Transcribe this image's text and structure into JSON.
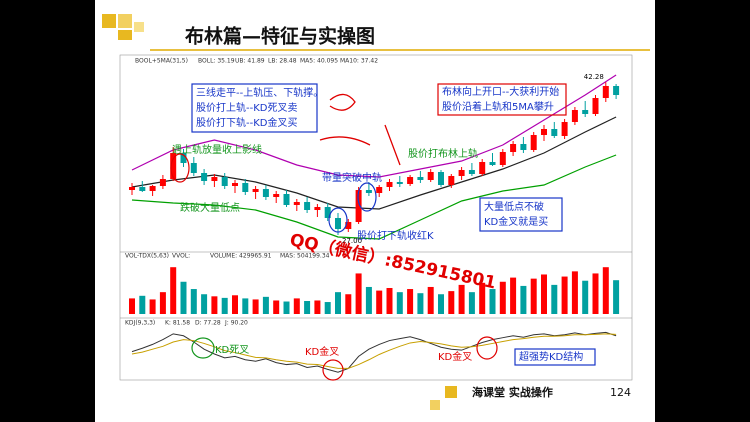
{
  "header": {
    "title": "布林篇—特征与实操图"
  },
  "chart_data": {
    "type": "candlestick",
    "toolbar": [
      "BOOL+5MA(31,5)",
      "BOLL: 35.19",
      "UB: 41.89",
      "LB: 28.48",
      "MA5: 40.095",
      "MA10: 37.42"
    ],
    "ylim": [
      26,
      43
    ],
    "high_label": 42.28,
    "low_label": {
      "value": 27,
      "label": "27.00"
    },
    "up_color": "#ff0000",
    "down_color": "#00a0a0",
    "candles": [
      [
        31.5,
        32.2,
        31.0,
        31.8
      ],
      [
        31.8,
        32.4,
        31.3,
        31.4
      ],
      [
        31.4,
        32.0,
        30.9,
        31.9
      ],
      [
        31.9,
        33.0,
        31.6,
        32.6
      ],
      [
        32.6,
        35.8,
        32.4,
        35.2
      ],
      [
        35.2,
        35.6,
        33.8,
        34.2
      ],
      [
        34.2,
        34.8,
        32.9,
        33.2
      ],
      [
        33.2,
        33.6,
        32.0,
        32.4
      ],
      [
        32.4,
        33.1,
        31.8,
        32.8
      ],
      [
        32.8,
        33.2,
        31.6,
        31.9
      ],
      [
        31.9,
        32.5,
        31.2,
        32.2
      ],
      [
        32.2,
        32.6,
        31.0,
        31.3
      ],
      [
        31.3,
        31.9,
        30.6,
        31.6
      ],
      [
        31.6,
        32.0,
        30.5,
        30.8
      ],
      [
        30.8,
        31.4,
        30.2,
        31.1
      ],
      [
        31.1,
        31.5,
        29.8,
        30.0
      ],
      [
        30.0,
        30.6,
        29.4,
        30.3
      ],
      [
        30.3,
        30.8,
        29.2,
        29.5
      ],
      [
        29.5,
        30.1,
        28.8,
        29.8
      ],
      [
        29.8,
        30.2,
        28.4,
        28.7
      ],
      [
        28.7,
        29.2,
        27.0,
        27.6
      ],
      [
        27.6,
        28.6,
        27.3,
        28.3
      ],
      [
        28.3,
        31.8,
        28.1,
        31.5
      ],
      [
        31.5,
        32.3,
        30.9,
        31.2
      ],
      [
        31.2,
        32.0,
        30.8,
        31.8
      ],
      [
        31.8,
        32.6,
        31.4,
        32.3
      ],
      [
        32.3,
        32.9,
        31.8,
        32.1
      ],
      [
        32.1,
        33.0,
        31.9,
        32.8
      ],
      [
        32.8,
        33.4,
        32.2,
        32.5
      ],
      [
        32.5,
        33.6,
        32.3,
        33.3
      ],
      [
        33.3,
        33.5,
        31.8,
        32.0
      ],
      [
        32.0,
        33.1,
        31.7,
        32.9
      ],
      [
        32.9,
        33.8,
        32.5,
        33.5
      ],
      [
        33.5,
        34.2,
        32.9,
        33.1
      ],
      [
        33.1,
        34.6,
        32.9,
        34.3
      ],
      [
        34.3,
        35.2,
        33.9,
        34.0
      ],
      [
        34.0,
        35.6,
        33.8,
        35.3
      ],
      [
        35.3,
        36.4,
        34.9,
        36.1
      ],
      [
        36.1,
        36.8,
        35.2,
        35.5
      ],
      [
        35.5,
        37.3,
        35.3,
        37.0
      ],
      [
        37.0,
        38.0,
        36.4,
        37.6
      ],
      [
        37.6,
        38.3,
        36.7,
        36.9
      ],
      [
        36.9,
        38.6,
        36.6,
        38.3
      ],
      [
        38.3,
        39.8,
        38.0,
        39.5
      ],
      [
        39.5,
        40.4,
        38.8,
        39.1
      ],
      [
        39.1,
        41.0,
        38.9,
        40.7
      ],
      [
        40.7,
        42.28,
        40.3,
        41.9
      ],
      [
        41.9,
        42.1,
        40.6,
        41.0
      ]
    ],
    "boll_index": [
      0,
      4,
      8,
      12,
      16,
      20,
      24,
      28,
      32,
      36,
      40,
      44,
      47
    ],
    "boll_upper": [
      33.5,
      35.5,
      36.5,
      35.5,
      34,
      33,
      32.8,
      33.6,
      34.4,
      36,
      38.5,
      41,
      43
    ],
    "boll_mid": [
      31.8,
      32.5,
      33,
      32.3,
      31.2,
      29.8,
      29.6,
      31,
      32.3,
      33.6,
      35.2,
      37.3,
      38.8
    ],
    "boll_lower": [
      30.5,
      30.2,
      30,
      29.5,
      28.3,
      26.8,
      26.6,
      28.5,
      30.4,
      31.4,
      32,
      33.8,
      35
    ],
    "boll_colors": [
      "#b000b0",
      "#222222",
      "#00a000"
    ],
    "annotations": [
      "三线走平--上轨压、下轨撑。",
      "股价打上轨--KD死叉卖",
      "股价打下轨--KD金叉买",
      "布林向上开口--大获利开始",
      "股价沿着上轨和5MA攀升",
      "遇上轨放量收上影线",
      "跌破大量低点",
      "带量突破中轨",
      "股价打布林上轨",
      "股价打下轨收红K",
      "大量低点不破",
      "KD金叉就是买",
      "QQ（微信）:852915801"
    ],
    "volume_header": [
      "VOL-TDX(5,63)",
      "VVOL:",
      "VOLUME: 429965.91",
      "MAS: 504199.34"
    ],
    "volume_ylim": [
      0,
      1000000
    ],
    "volume": [
      300000,
      350000,
      280000,
      420000,
      900000,
      620000,
      480000,
      380000,
      340000,
      310000,
      360000,
      300000,
      280000,
      330000,
      260000,
      240000,
      300000,
      250000,
      260000,
      230000,
      420000,
      380000,
      780000,
      520000,
      450000,
      500000,
      420000,
      480000,
      400000,
      520000,
      380000,
      440000,
      560000,
      420000,
      600000,
      480000,
      620000,
      700000,
      540000,
      680000,
      760000,
      560000,
      720000,
      820000,
      640000,
      780000,
      900000,
      650000
    ],
    "kdj_header": [
      "KDJ(9,3,3)",
      "K: 81.58",
      "D: 77.28",
      "J: 90.20"
    ],
    "kdj_ylim": [
      0,
      100
    ],
    "k": [
      55,
      62,
      70,
      80,
      92,
      88,
      75,
      60,
      50,
      42,
      45,
      38,
      35,
      40,
      32,
      28,
      30,
      22,
      25,
      18,
      12,
      20,
      45,
      60,
      70,
      78,
      82,
      86,
      80,
      72,
      64,
      60,
      58,
      66,
      74,
      80,
      84,
      88,
      85,
      90,
      92,
      88,
      90,
      94,
      90,
      93,
      95,
      88
    ],
    "d": [
      50,
      54,
      60,
      66,
      75,
      80,
      78,
      72,
      65,
      57,
      53,
      48,
      43,
      42,
      38,
      35,
      33,
      29,
      28,
      24,
      20,
      20,
      28,
      38,
      49,
      58,
      66,
      73,
      76,
      74,
      71,
      67,
      64,
      65,
      68,
      72,
      76,
      80,
      82,
      85,
      87,
      87,
      88,
      90,
      90,
      91,
      92,
      91
    ],
    "kd_colors": [
      "#333333",
      "#c8a000"
    ],
    "kd_annotations": [
      "KD死叉",
      "KD金叉",
      "KD金叉",
      "超强势KD结构"
    ]
  },
  "footer": {
    "brand": "海课堂  实战操作",
    "page": "124"
  }
}
